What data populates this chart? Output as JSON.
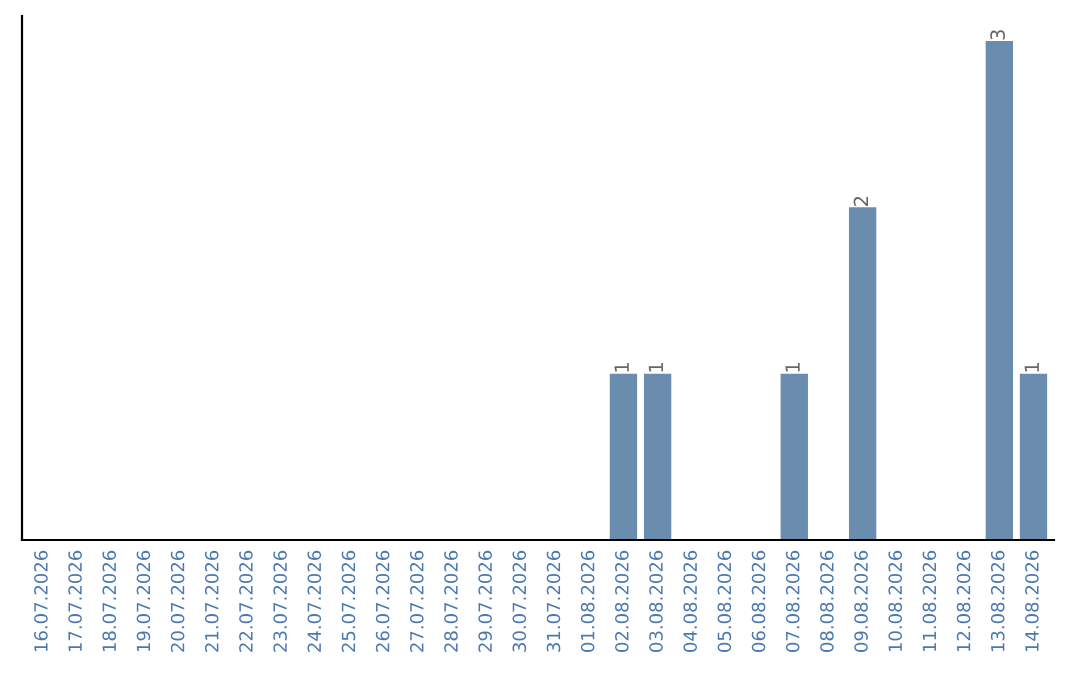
{
  "chart_data": {
    "type": "bar",
    "categories": [
      "16.07.2026",
      "17.07.2026",
      "18.07.2026",
      "19.07.2026",
      "20.07.2026",
      "21.07.2026",
      "22.07.2026",
      "23.07.2026",
      "24.07.2026",
      "25.07.2026",
      "26.07.2026",
      "27.07.2026",
      "28.07.2026",
      "29.07.2026",
      "30.07.2026",
      "31.07.2026",
      "01.08.2026",
      "02.08.2026",
      "03.08.2026",
      "04.08.2026",
      "05.08.2026",
      "06.08.2026",
      "07.08.2026",
      "08.08.2026",
      "09.08.2026",
      "10.08.2026",
      "11.08.2026",
      "12.08.2026",
      "13.08.2026",
      "14.08.2026"
    ],
    "values": [
      null,
      null,
      null,
      null,
      null,
      null,
      null,
      null,
      null,
      null,
      null,
      null,
      null,
      null,
      null,
      null,
      null,
      1,
      1,
      null,
      null,
      null,
      1,
      null,
      2,
      null,
      null,
      null,
      3,
      1
    ],
    "data_labels": true,
    "color": "#6a8caf",
    "tick_labels": "x",
    "grid": false,
    "legend": false
  }
}
